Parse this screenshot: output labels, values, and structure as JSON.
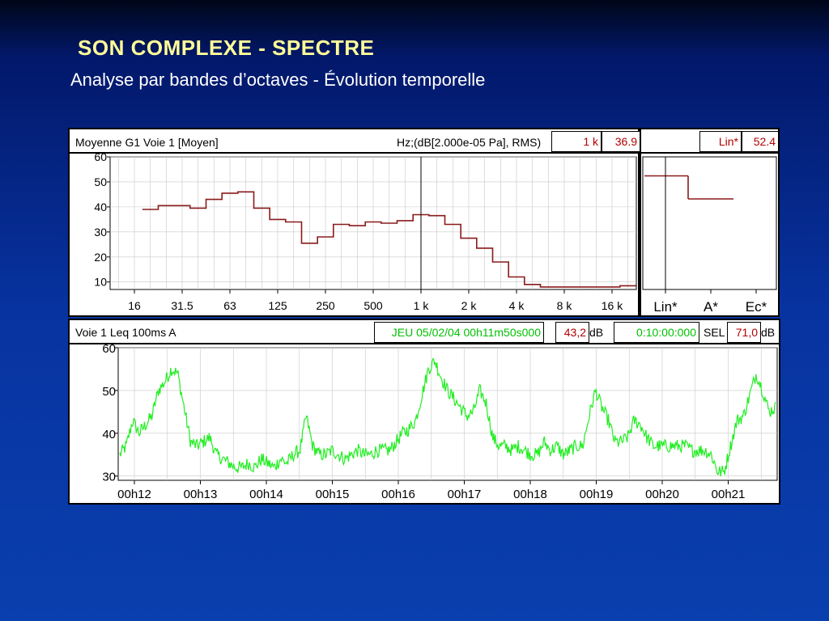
{
  "slide": {
    "title": "SON COMPLEXE - SPECTRE",
    "subtitle": "Analyse par bandes d’octaves - Évolution temporelle"
  },
  "spectrum_header": {
    "label": "Moyenne G1 Voie  1 [Moyen]",
    "unit": "Hz;(dB[2.000e-05 Pa], RMS)",
    "cursor_freq": "1 k",
    "cursor_value": "36.9",
    "global_label": "Lin*",
    "global_value": "52.4"
  },
  "time_header": {
    "label": "Voie  1  Leq 100ms  A",
    "start": "JEU 05/02/04 00h11m50s000",
    "level": "43,2",
    "level_unit": "dB",
    "duration": "0:10:00:000",
    "sel_label": "SEL",
    "sel_value": "71,0",
    "sel_unit": "dB"
  },
  "colors": {
    "spectrum_line": "#8b1a1a",
    "time_line": "#22ee22",
    "grid": "#c8c8c8",
    "title": "#ffff99"
  },
  "chart_data": [
    {
      "type": "line",
      "step": true,
      "x_scale": "log (octave bands)",
      "x_tick_labels": [
        "16",
        "31.5",
        "63",
        "125",
        "250",
        "500",
        "1 k",
        "2 k",
        "4 k",
        "8 k",
        "16 k"
      ],
      "y_tick_labels": [
        "10",
        "20",
        "30",
        "40",
        "50",
        "60"
      ],
      "ylim": [
        7,
        60
      ],
      "grid": true,
      "cursor_x": "1 k",
      "x": [
        "20",
        "25",
        "31.5",
        "40",
        "50",
        "63",
        "80",
        "100",
        "125",
        "160",
        "200",
        "250",
        "315",
        "400",
        "500",
        "630",
        "800",
        "1 k",
        "1.25 k",
        "1.6 k",
        "2 k",
        "2.5 k",
        "3.15 k",
        "4 k",
        "5 k",
        "6.3 k",
        "8 k",
        "10 k",
        "12.5 k",
        "16 k",
        "20 k"
      ],
      "values": [
        39,
        40.5,
        40.5,
        39.5,
        43,
        45.5,
        46,
        39.5,
        35,
        34,
        25.5,
        28,
        33,
        32.5,
        34,
        33.5,
        34.5,
        36.9,
        36.5,
        33,
        27.5,
        23.5,
        18,
        12,
        9,
        8,
        8,
        8,
        8,
        8,
        8.5
      ]
    },
    {
      "type": "bar",
      "step": true,
      "categories": [
        "Lin*",
        "A*",
        "Ec*"
      ],
      "values": [
        52.4,
        43.2,
        null
      ],
      "ylim": [
        7,
        60
      ],
      "cursor_category": "Lin*"
    },
    {
      "type": "line",
      "x_tick_labels": [
        "00h12",
        "00h13",
        "00h14",
        "00h15",
        "00h16",
        "00h17",
        "00h18",
        "00h19",
        "00h20",
        "00h21"
      ],
      "y_tick_labels": [
        "30",
        "40",
        "50",
        "60"
      ],
      "ylim": [
        29,
        60
      ],
      "grid": true,
      "series": [
        {
          "values": [
            35,
            37,
            43,
            40,
            42,
            44,
            50,
            52,
            55,
            54,
            46,
            38,
            37,
            38,
            39,
            35,
            34,
            33,
            32,
            32,
            33,
            32,
            34,
            33,
            32,
            34,
            33,
            35,
            36,
            44,
            37,
            35,
            35,
            36,
            35,
            34,
            35,
            36,
            35,
            35,
            36,
            36,
            36,
            38,
            40,
            41,
            43,
            49,
            55,
            57,
            53,
            50,
            48,
            46,
            44,
            45,
            50,
            47,
            39,
            37,
            37,
            36,
            37,
            36,
            35,
            35,
            38,
            36,
            37,
            35,
            36,
            37,
            37,
            44,
            50,
            46,
            43,
            38,
            38,
            39,
            43,
            42,
            39,
            37,
            37,
            37,
            37,
            37,
            37,
            36,
            36,
            36,
            35,
            31,
            31,
            37,
            43,
            44,
            49,
            54,
            50,
            45,
            46
          ]
        }
      ]
    }
  ]
}
